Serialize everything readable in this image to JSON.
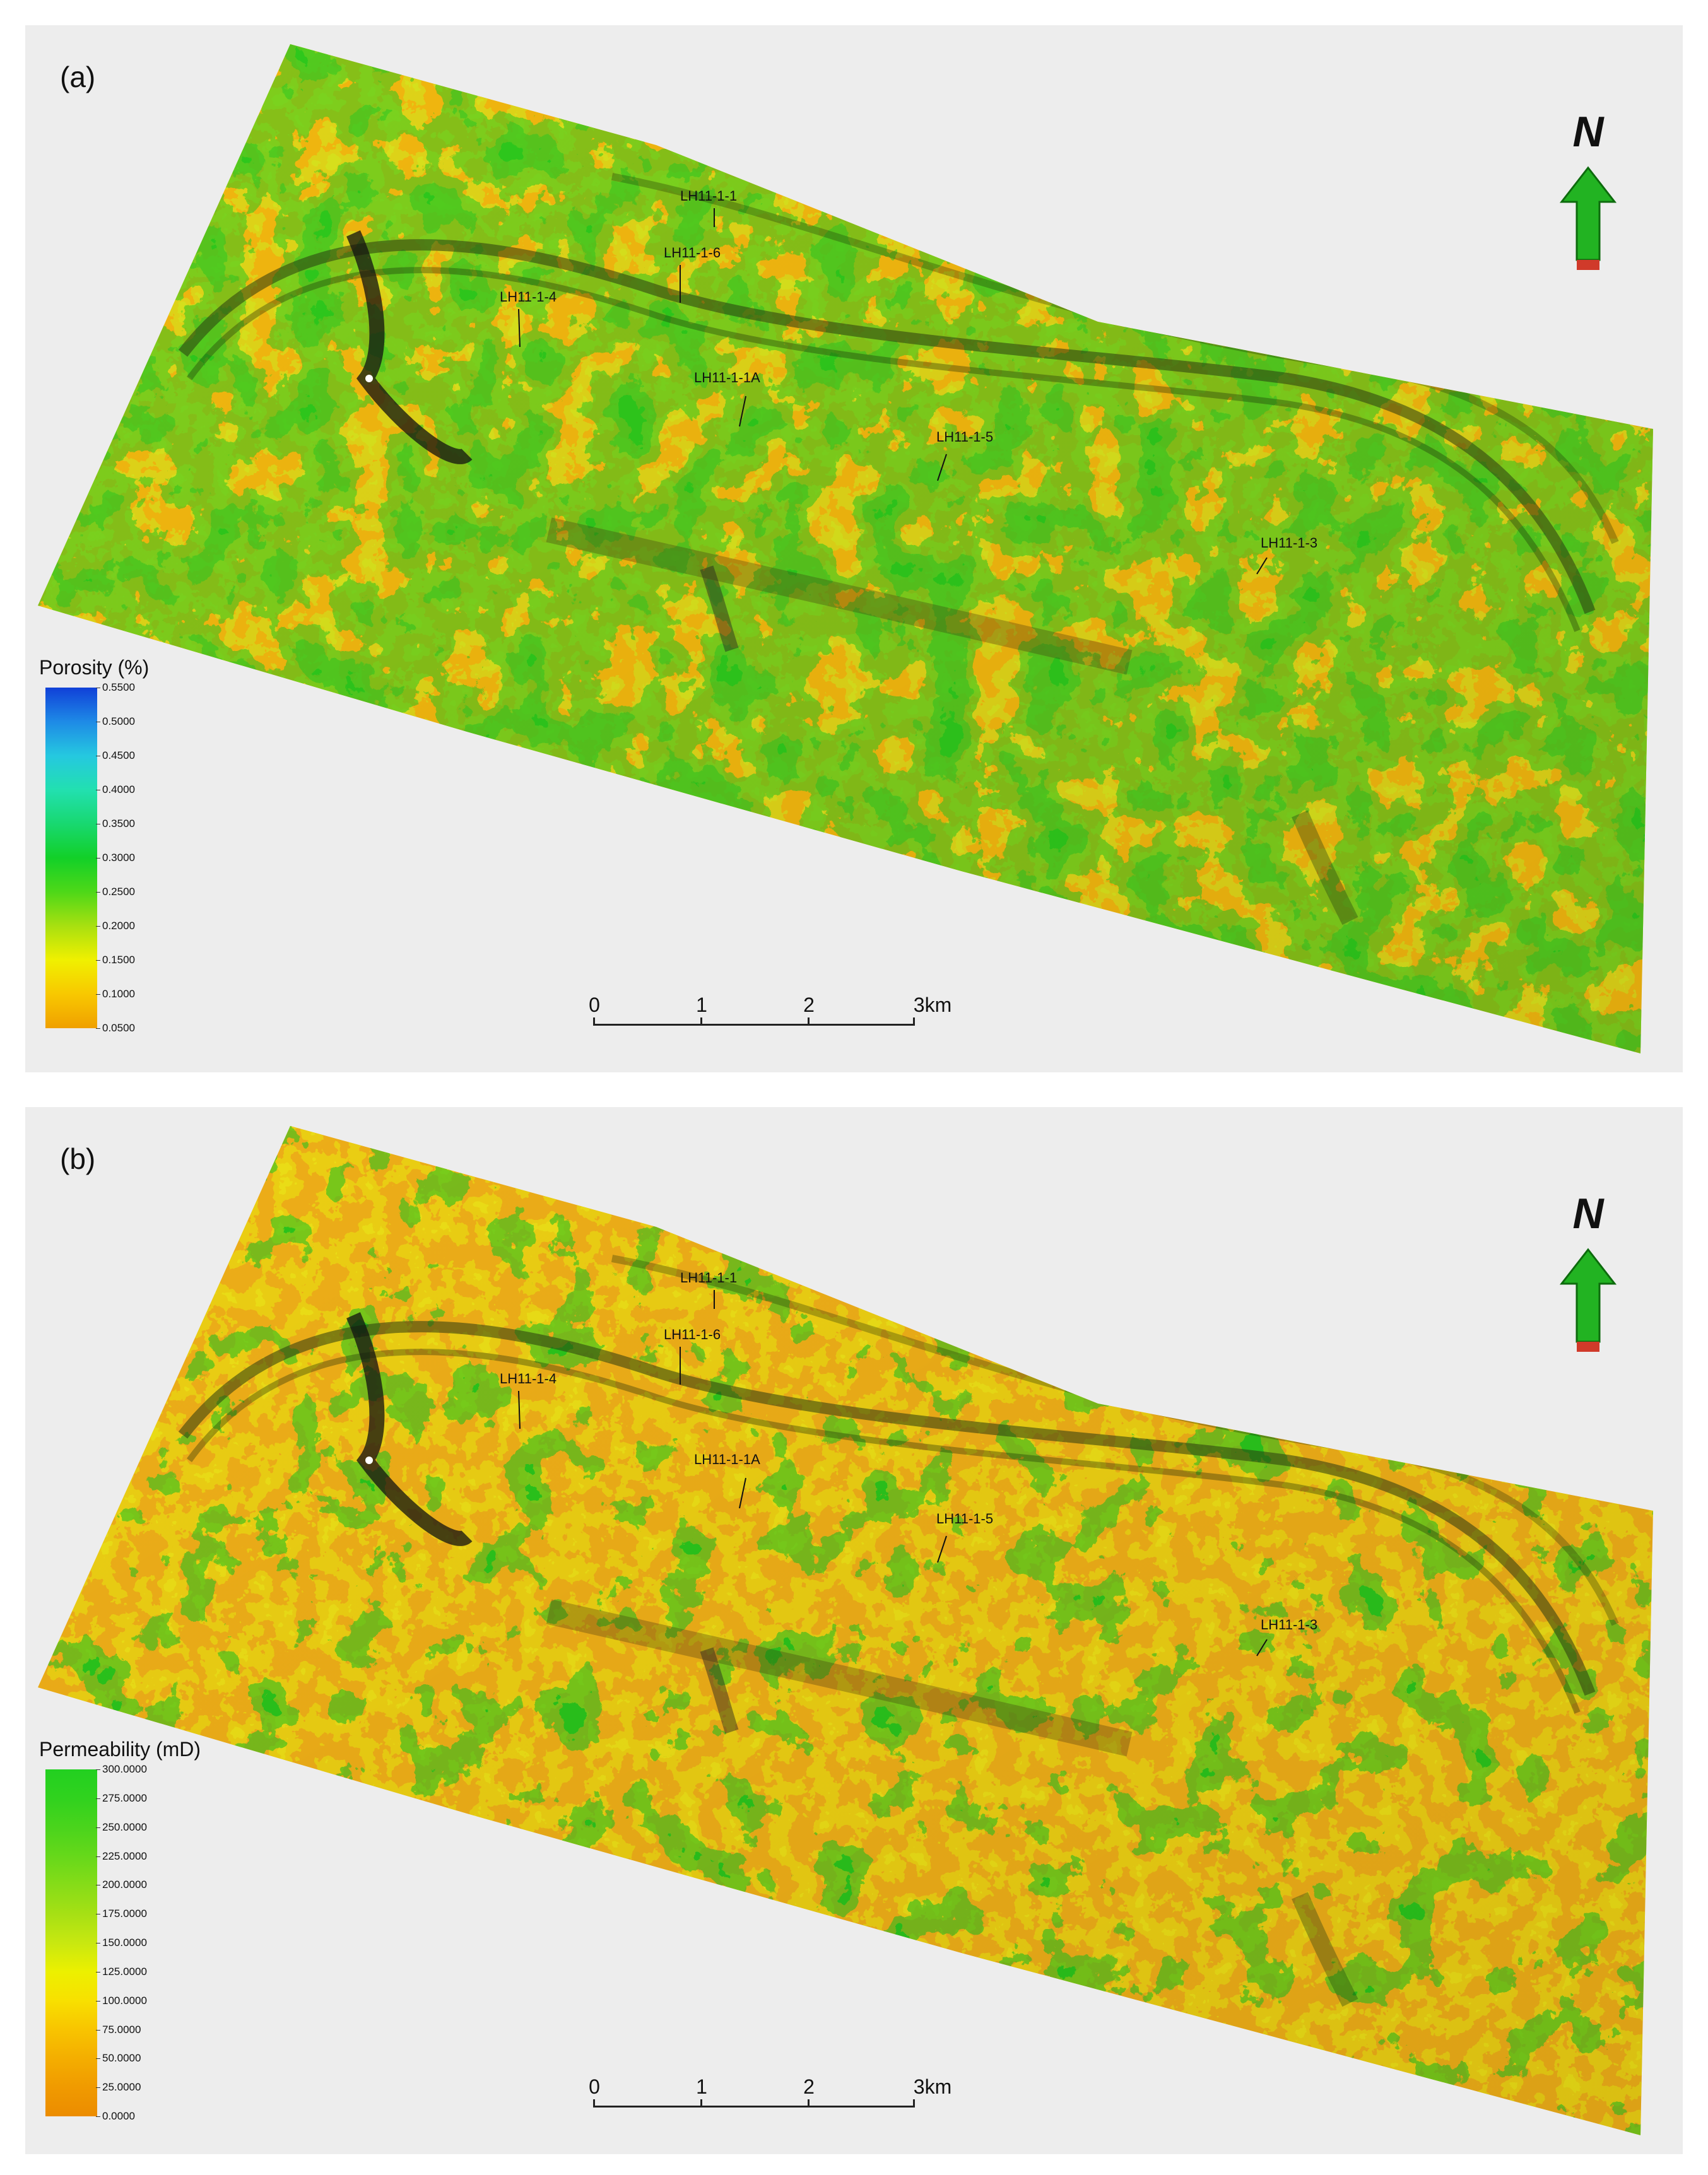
{
  "panels": [
    {
      "label": "(a)",
      "north": "N",
      "legend": {
        "title": "Porosity (%)",
        "ticks": [
          "0.5500",
          "0.5000",
          "0.4500",
          "0.4000",
          "0.3500",
          "0.3000",
          "0.2500",
          "0.2000",
          "0.1500",
          "0.1000",
          "0.0500"
        ],
        "colors": [
          "#1040d8",
          "#1e8ae6",
          "#25c8e0",
          "#22e0b0",
          "#18d870",
          "#12d028",
          "#4ed818",
          "#a8e010",
          "#f0f000",
          "#f8c800",
          "#f0a000"
        ]
      },
      "scalebar": {
        "labels": [
          "0",
          "1",
          "2",
          "3km"
        ]
      },
      "surface_colors": {
        "base": "#f2b70f",
        "mid": "#d9e21c",
        "high": "#2fc91f"
      },
      "wells": [
        {
          "name": "LH11-1-1"
        },
        {
          "name": "LH11-1-6"
        },
        {
          "name": "LH11-1-4"
        },
        {
          "name": "LH11-1-1A"
        },
        {
          "name": "LH11-1-5"
        },
        {
          "name": "LH11-1-3"
        }
      ]
    },
    {
      "label": "(b)",
      "north": "N",
      "legend": {
        "title": "Permeability (mD)",
        "ticks": [
          "300.0000",
          "275.0000",
          "250.0000",
          "225.0000",
          "200.0000",
          "175.0000",
          "150.0000",
          "125.0000",
          "100.0000",
          "75.0000",
          "50.0000",
          "25.0000",
          "0.0000"
        ],
        "colors": [
          "#22d020",
          "#30d21e",
          "#4ad41c",
          "#66d81a",
          "#86dc18",
          "#a6e014",
          "#c8e810",
          "#ecf000",
          "#f8e000",
          "#f8c400",
          "#f4ae00",
          "#f09a00",
          "#ec8c00"
        ]
      },
      "scalebar": {
        "labels": [
          "0",
          "1",
          "2",
          "3km"
        ]
      },
      "surface_colors": {
        "base": "#eeae18",
        "mid": "#ecde12",
        "high": "#2cc41f"
      },
      "wells": [
        {
          "name": "LH11-1-1"
        },
        {
          "name": "LH11-1-6"
        },
        {
          "name": "LH11-1-4"
        },
        {
          "name": "LH11-1-1A"
        },
        {
          "name": "LH11-1-5"
        },
        {
          "name": "LH11-1-3"
        }
      ]
    }
  ]
}
